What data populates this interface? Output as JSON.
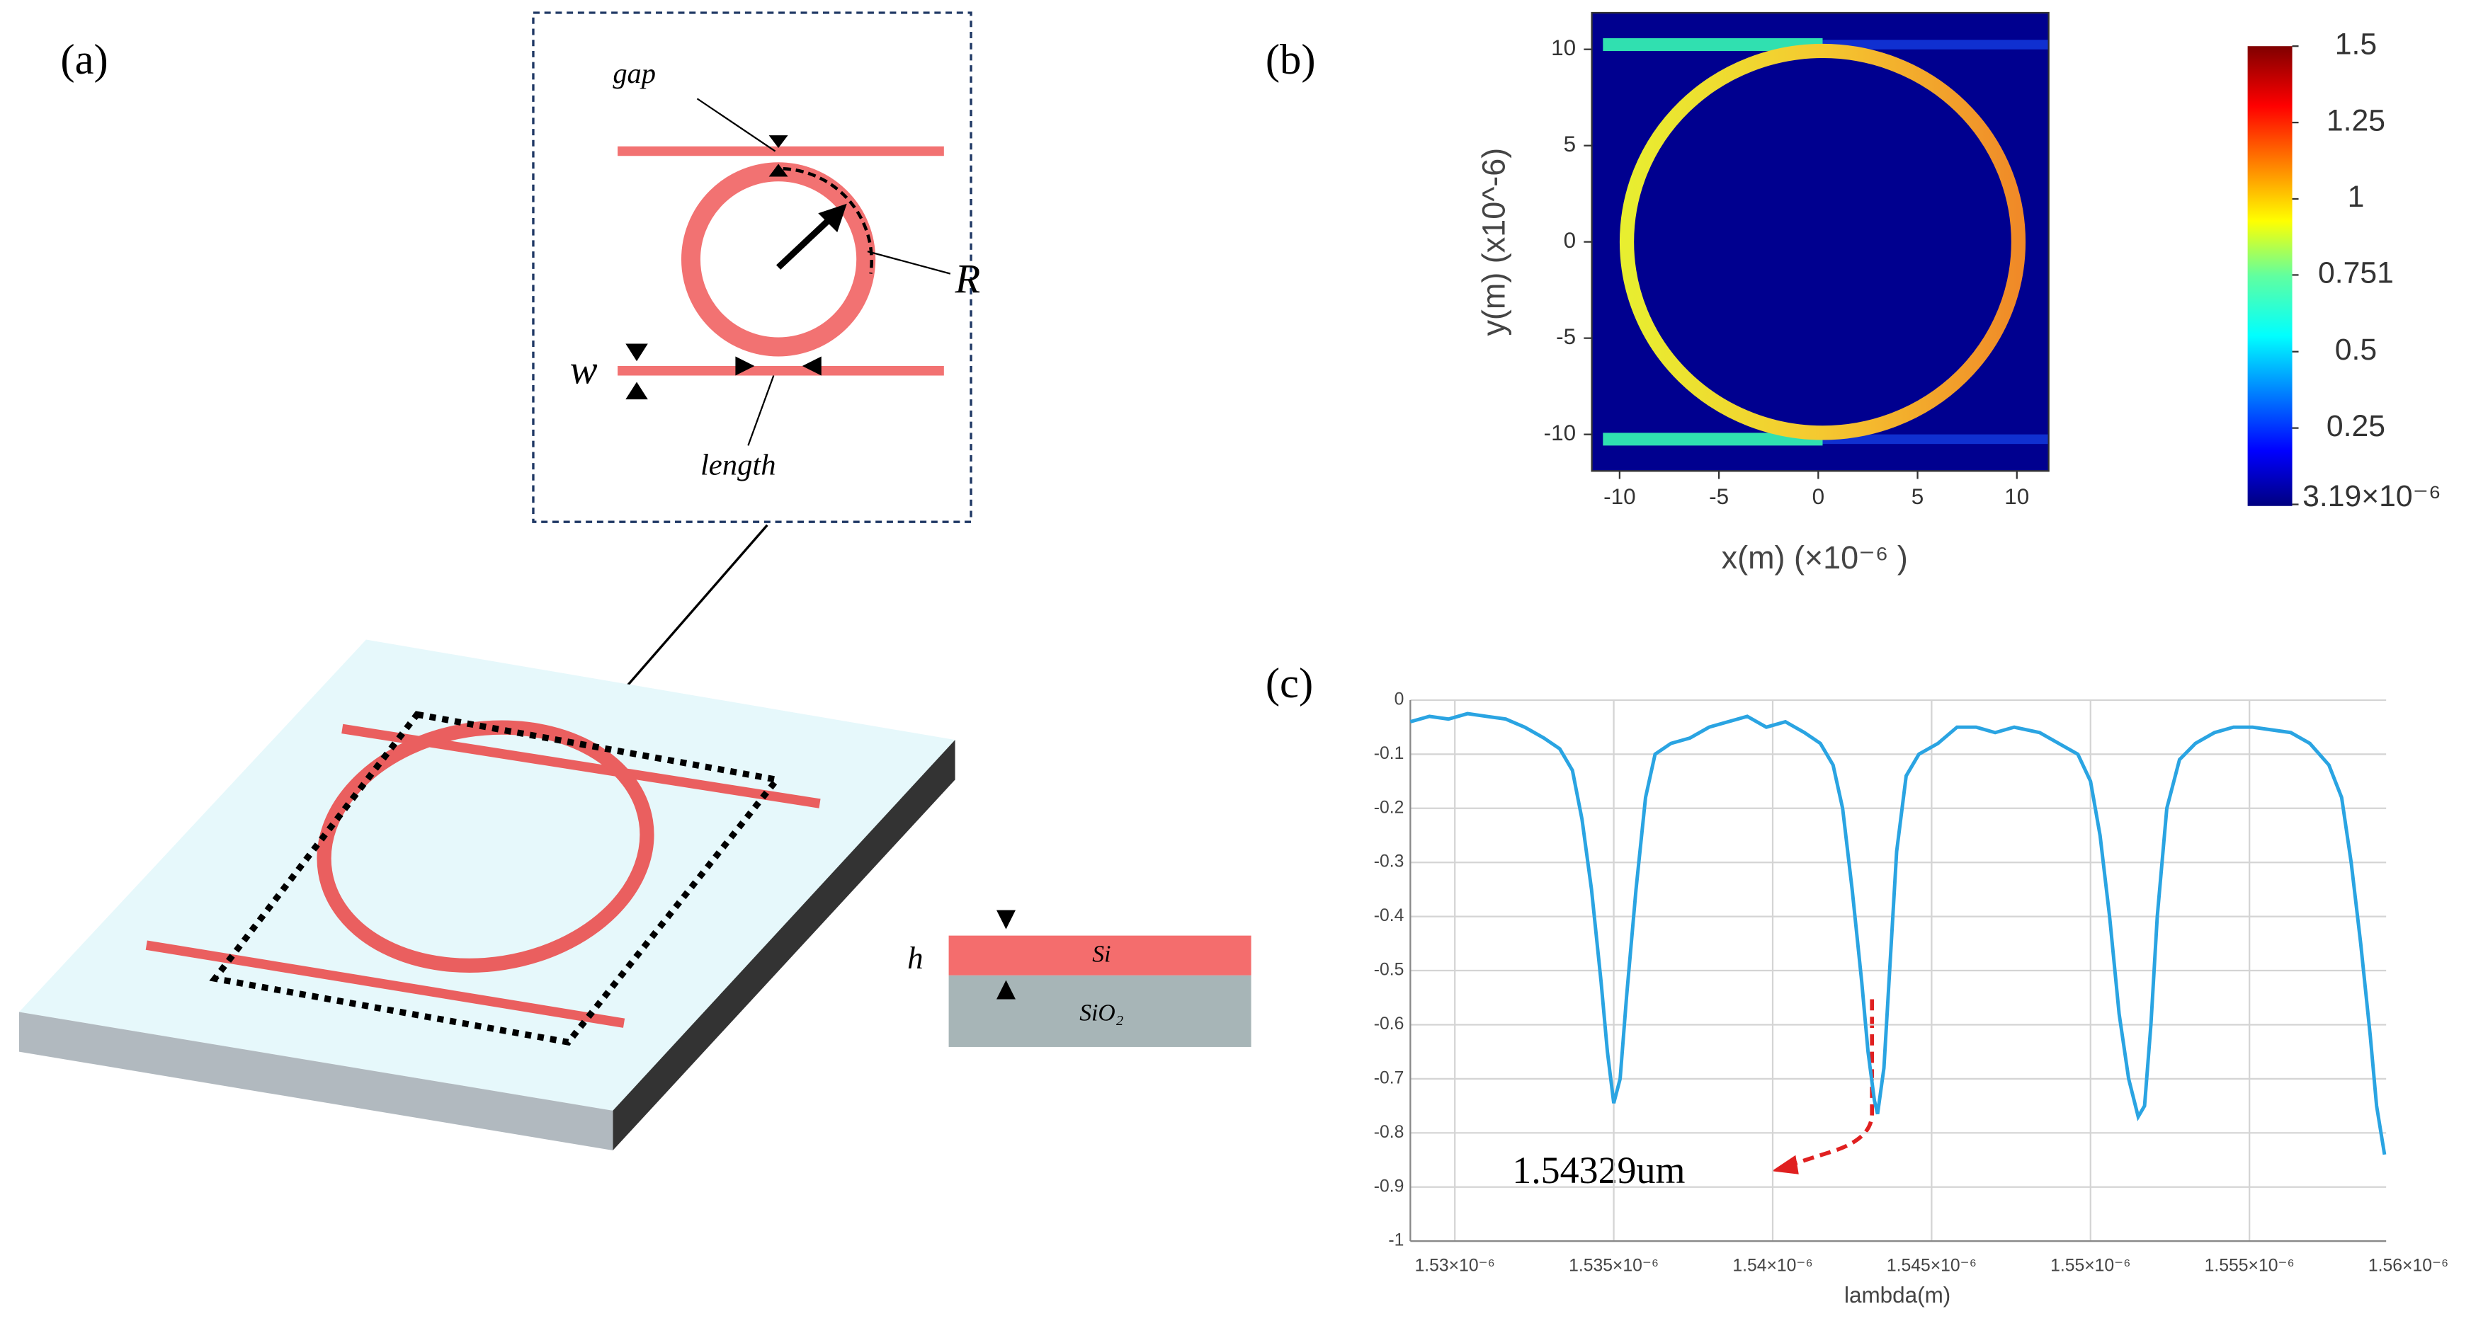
{
  "panel_a": {
    "label": "(a)",
    "gap": "gap",
    "R": "R",
    "w": "w",
    "length": "length",
    "h": "h",
    "si": "Si",
    "sio2": "SiO₂"
  },
  "chart_data": [
    {
      "type": "heatmap",
      "label": "(b)",
      "xlabel": "x(m) (×10⁻⁶ )",
      "ylabel": "y(m) (x10^-6)",
      "xlim": [
        -11.4,
        11.6
      ],
      "ylim": [
        -11.9,
        11.9
      ],
      "xticks": [
        -10,
        -5,
        0,
        5,
        10
      ],
      "yticks": [
        10,
        5,
        0,
        -5,
        -10
      ],
      "colorbar": {
        "lim": [
          3.19e-06,
          1.5
        ],
        "ticks": [
          1.5,
          1.25,
          1,
          0.751,
          0.5,
          0.25,
          {
            "value": 3.19e-06,
            "label": "3.19×10⁻⁶"
          }
        ]
      }
    },
    {
      "type": "line",
      "label": "(c)",
      "xlabel": "lambda(m)",
      "annotation": "1.54329um",
      "color": "#2aa4e2",
      "grid": true,
      "xlim": [
        1.5286e-06,
        1.5593e-06
      ],
      "ylim": [
        -1,
        0
      ],
      "xticks": [
        {
          "value": 1.53e-06,
          "label": "1.53×10⁻⁶"
        },
        {
          "value": 1.535e-06,
          "label": "1.535×10⁻⁶"
        },
        {
          "value": 1.54e-06,
          "label": "1.54×10⁻⁶"
        },
        {
          "value": 1.545e-06,
          "label": "1.545×10⁻⁶"
        },
        {
          "value": 1.55e-06,
          "label": "1.55×10⁻⁶"
        },
        {
          "value": 1.555e-06,
          "label": "1.555×10⁻⁶"
        },
        {
          "value": 1.56e-06,
          "label": "1.56×10⁻⁶"
        }
      ],
      "yticks": [
        0,
        -0.1,
        -0.2,
        -0.3,
        -0.4,
        -0.5,
        -0.6,
        -0.7,
        -0.8,
        -0.9,
        -1
      ],
      "x": [
        1.5286e-06,
        1.5292e-06,
        1.5298e-06,
        1.5304e-06,
        1.531e-06,
        1.5316e-06,
        1.5322e-06,
        1.5328e-06,
        1.5333e-06,
        1.5337e-06,
        1.534e-06,
        1.5343e-06,
        1.5346e-06,
        1.5348e-06,
        1.535e-06,
        1.5352e-06,
        1.5354e-06,
        1.5357e-06,
        1.536e-06,
        1.5363e-06,
        1.5368e-06,
        1.5374e-06,
        1.538e-06,
        1.5386e-06,
        1.5392e-06,
        1.5398e-06,
        1.5404e-06,
        1.541e-06,
        1.5415e-06,
        1.5419e-06,
        1.5422e-06,
        1.5425e-06,
        1.5428e-06,
        1.543e-06,
        1.5432e-06,
        1.5433e-06,
        1.5435e-06,
        1.5437e-06,
        1.5439e-06,
        1.5442e-06,
        1.5446e-06,
        1.5452e-06,
        1.5458e-06,
        1.5464e-06,
        1.547e-06,
        1.5476e-06,
        1.5484e-06,
        1.549e-06,
        1.5496e-06,
        1.55e-06,
        1.5503e-06,
        1.5506e-06,
        1.5509e-06,
        1.5512e-06,
        1.5515e-06,
        1.5517e-06,
        1.5519e-06,
        1.5521e-06,
        1.5524e-06,
        1.5528e-06,
        1.5533e-06,
        1.5539e-06,
        1.5545e-06,
        1.5551e-06,
        1.5557e-06,
        1.5563e-06,
        1.5569e-06,
        1.5575e-06,
        1.5579e-06,
        1.5582e-06,
        1.5585e-06,
        1.5588e-06,
        1.559e-06,
        1.55925e-06
      ],
      "values": [
        -0.04,
        -0.03,
        -0.035,
        -0.025,
        -0.03,
        -0.035,
        -0.05,
        -0.07,
        -0.09,
        -0.13,
        -0.22,
        -0.35,
        -0.52,
        -0.65,
        -0.745,
        -0.7,
        -0.55,
        -0.35,
        -0.18,
        -0.1,
        -0.08,
        -0.07,
        -0.05,
        -0.04,
        -0.03,
        -0.05,
        -0.04,
        -0.06,
        -0.08,
        -0.12,
        -0.2,
        -0.35,
        -0.52,
        -0.65,
        -0.74,
        -0.765,
        -0.68,
        -0.48,
        -0.28,
        -0.14,
        -0.1,
        -0.08,
        -0.05,
        -0.05,
        -0.06,
        -0.05,
        -0.06,
        -0.08,
        -0.1,
        -0.15,
        -0.25,
        -0.4,
        -0.58,
        -0.7,
        -0.77,
        -0.75,
        -0.6,
        -0.4,
        -0.2,
        -0.11,
        -0.08,
        -0.06,
        -0.05,
        -0.05,
        -0.055,
        -0.06,
        -0.08,
        -0.12,
        -0.18,
        -0.3,
        -0.45,
        -0.62,
        -0.75,
        -0.84
      ]
    }
  ]
}
